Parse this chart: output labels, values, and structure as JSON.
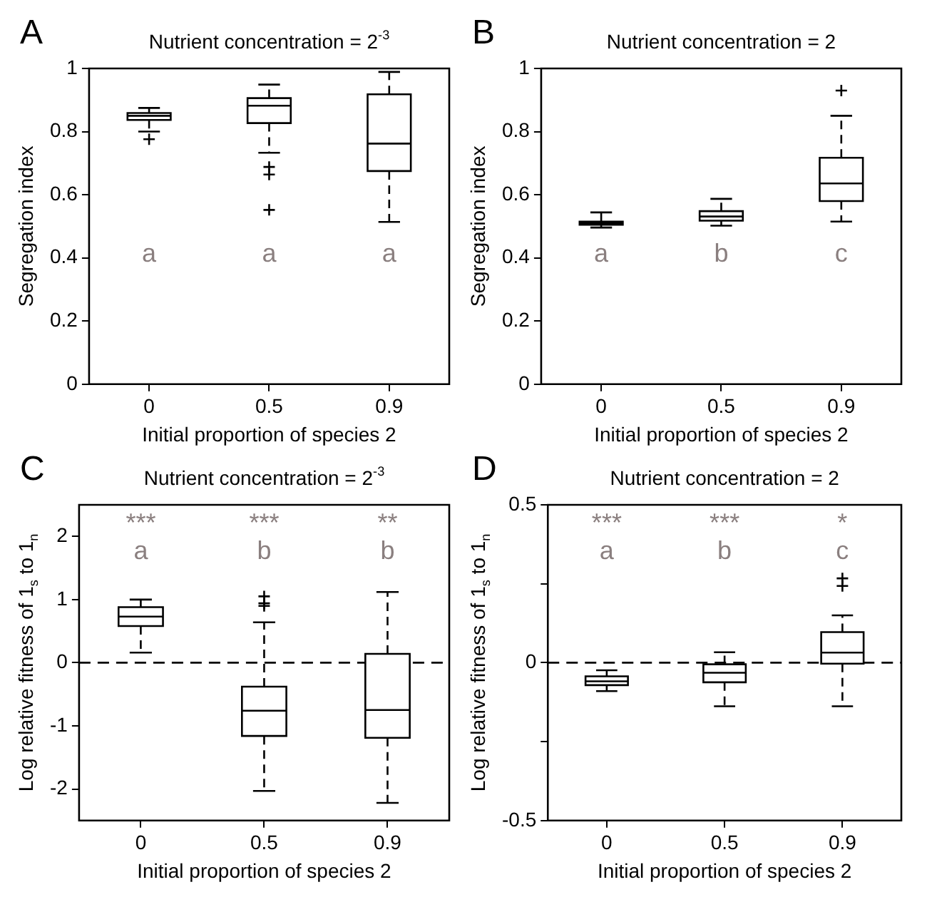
{
  "chart_data": [
    {
      "type": "box",
      "title": "Nutrient concentration = 2$^{-3}$",
      "xlabel": "Initial proportion of species 2",
      "ylabel": "Segregation index",
      "categories": [
        "0",
        "0.5",
        "0.9"
      ],
      "boxes": [
        {
          "low": 0.8,
          "q1": 0.837,
          "median": 0.85,
          "q3": 0.859,
          "high": 0.875,
          "outliers": [
            0.776
          ]
        },
        {
          "low": 0.733,
          "q1": 0.827,
          "median": 0.882,
          "q3": 0.906,
          "high": 0.949,
          "outliers": [
            0.688,
            0.664,
            0.552
          ]
        },
        {
          "low": 0.514,
          "q1": 0.675,
          "median": 0.762,
          "q3": 0.918,
          "high": 0.989
        }
      ],
      "ylim": [
        0,
        1
      ],
      "yticks": [
        0,
        0.2,
        0.4,
        0.6,
        0.8,
        1
      ],
      "annotations": [
        "A",
        "a",
        "a",
        "a"
      ]
    },
    {
      "type": "box",
      "title": "Nutrient concentration = 2",
      "xlabel": "Initial proportion of species 2",
      "ylabel": "Segregation index",
      "categories": [
        "0",
        "0.5",
        "0.9"
      ],
      "boxes": [
        {
          "low": 0.496,
          "q1": 0.505,
          "median": 0.51,
          "q3": 0.515,
          "high": 0.544
        },
        {
          "low": 0.502,
          "q1": 0.518,
          "median": 0.531,
          "q3": 0.548,
          "high": 0.587
        },
        {
          "low": 0.515,
          "q1": 0.58,
          "median": 0.636,
          "q3": 0.717,
          "high": 0.85,
          "outliers": [
            0.93
          ]
        }
      ],
      "ylim": [
        0,
        1
      ],
      "yticks": [
        0,
        0.2,
        0.4,
        0.6,
        0.8,
        1
      ],
      "annotations": [
        "B",
        "a",
        "b",
        "c"
      ]
    },
    {
      "type": "box",
      "title": "Nutrient concentration = 2$^{-3}$",
      "xlabel": "Initial proportion of species 2",
      "ylabel": "Log relative fitness of 1$_{s}$ to 1$_{n}$",
      "categories": [
        "0",
        "0.5",
        "0.9"
      ],
      "boxes": [
        {
          "low": 0.16,
          "q1": 0.58,
          "median": 0.73,
          "q3": 0.88,
          "high": 1.0
        },
        {
          "low": -2.03,
          "q1": -1.16,
          "median": -0.76,
          "q3": -0.38,
          "high": 0.64,
          "outliers": [
            0.9,
            0.94,
            1.05
          ]
        },
        {
          "low": -2.22,
          "q1": -1.19,
          "median": -0.75,
          "q3": 0.14,
          "high": 1.12
        }
      ],
      "ylim": [
        -2.5,
        2.5
      ],
      "yticks": [
        -2,
        -1,
        0,
        1,
        2
      ],
      "ref_lines": [
        {
          "axis": "y",
          "value": 0,
          "line_style": "dashed"
        }
      ],
      "annotations": [
        "C",
        "***",
        "***",
        "**",
        "a",
        "b",
        "b"
      ]
    },
    {
      "type": "box",
      "title": "Nutrient concentration = 2",
      "xlabel": "Initial proportion of species 2",
      "ylabel": "Log relative fitness of 1$_{s}$ to 1$_{n}$",
      "categories": [
        "0",
        "0.5",
        "0.9"
      ],
      "boxes": [
        {
          "low": -0.09,
          "q1": -0.071,
          "median": -0.059,
          "q3": -0.043,
          "high": -0.024
        },
        {
          "low": -0.138,
          "q1": -0.062,
          "median": -0.032,
          "q3": -0.005,
          "high": 0.033
        },
        {
          "low": -0.138,
          "q1": -0.003,
          "median": 0.032,
          "q3": 0.097,
          "high": 0.15,
          "outliers": [
            0.243,
            0.267
          ]
        }
      ],
      "ylim": [
        -0.5,
        0.5
      ],
      "yticks": [
        -0.5,
        {
          "value": -0.25,
          "label": null
        },
        0,
        {
          "value": 0.25,
          "label": null
        },
        0.5
      ],
      "ref_lines": [
        {
          "axis": "y",
          "value": 0,
          "line_style": "dashed"
        }
      ],
      "annotations": [
        "D",
        "***",
        "***",
        "*",
        "a",
        "b",
        "c"
      ]
    }
  ]
}
